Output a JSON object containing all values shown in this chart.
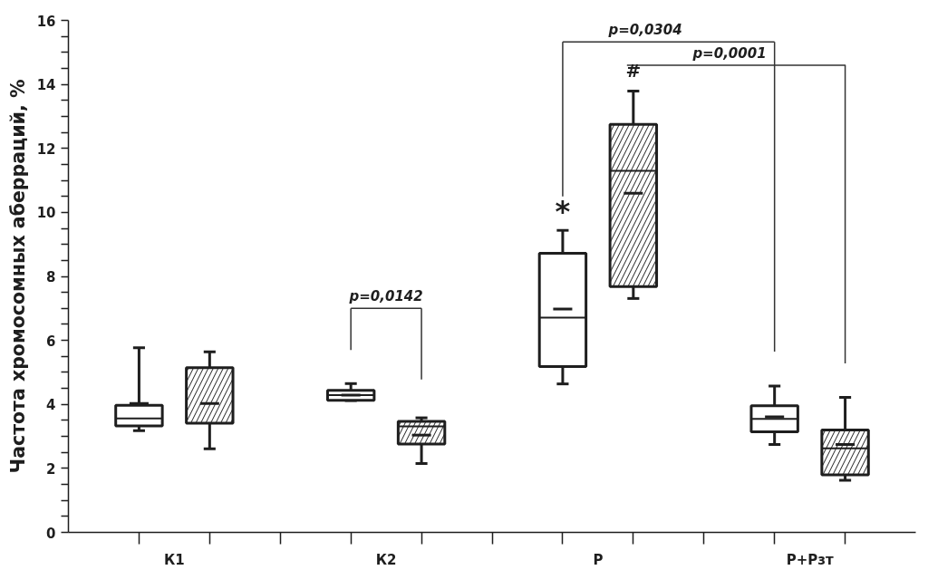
{
  "chart_data": {
    "type": "box",
    "ylabel": "Частота хромосомных аберраций, %",
    "categories": [
      "К1",
      "К2",
      "Р",
      "Р+Рзт"
    ],
    "ylim": [
      0,
      16
    ],
    "yticks": [
      0,
      {
        "value": 0.5,
        "label": null
      },
      {
        "value": 1,
        "label": null
      },
      {
        "value": 1.5,
        "label": null
      },
      2,
      {
        "value": 2.5,
        "label": null
      },
      {
        "value": 3,
        "label": null
      },
      {
        "value": 3.5,
        "label": null
      },
      4,
      {
        "value": 4.5,
        "label": null
      },
      {
        "value": 5,
        "label": null
      },
      {
        "value": 5.5,
        "label": null
      },
      6,
      {
        "value": 6.5,
        "label": null
      },
      {
        "value": 7,
        "label": null
      },
      {
        "value": 7.5,
        "label": null
      },
      8,
      {
        "value": 8.5,
        "label": null
      },
      {
        "value": 9,
        "label": null
      },
      {
        "value": 9.5,
        "label": null
      },
      10,
      {
        "value": 10.5,
        "label": null
      },
      {
        "value": 11,
        "label": null
      },
      {
        "value": 11.5,
        "label": null
      },
      12,
      {
        "value": 12.5,
        "label": null
      },
      {
        "value": 13,
        "label": null
      },
      {
        "value": 13.5,
        "label": null
      },
      14,
      {
        "value": 14.5,
        "label": null
      },
      {
        "value": 15,
        "label": null
      },
      {
        "value": 15.5,
        "label": null
      },
      16
    ],
    "series": [
      {
        "color": "#ffffff",
        "boxes": [
          {
            "low": 3.18,
            "q1": 3.33,
            "median": 3.56,
            "q3": 3.97,
            "high": 5.77,
            "mean": 4.03
          },
          {
            "low": 4.12,
            "q1": 4.13,
            "median": 4.29,
            "q3": 4.44,
            "high": 4.65,
            "mean": 4.29
          },
          {
            "low": 4.64,
            "q1": 5.18,
            "median": 6.71,
            "q3": 8.72,
            "high": 9.44,
            "mean": 6.98
          },
          {
            "low": 2.75,
            "q1": 3.14,
            "median": 3.55,
            "q3": 3.96,
            "high": 4.57,
            "mean": 3.61
          }
        ]
      },
      {
        "color": "#ffffff",
        "boxes": [
          {
            "low": 2.61,
            "q1": 3.41,
            "median": 3.41,
            "q3": 5.15,
            "high": 5.64,
            "mean": 4.03
          },
          {
            "low": 2.15,
            "q1": 2.76,
            "median": 3.31,
            "q3": 3.47,
            "high": 3.58,
            "mean": 3.04
          },
          {
            "low": 7.31,
            "q1": 7.68,
            "median": 11.3,
            "q3": 12.75,
            "high": 13.79,
            "mean": 10.6
          },
          {
            "low": 1.63,
            "q1": 1.8,
            "median": 2.63,
            "q3": 3.2,
            "high": 4.22,
            "mean": 2.75
          }
        ]
      }
    ],
    "annotations": [
      "p=0,0142",
      "p=0,0304",
      "p=0,0001",
      "*",
      "#"
    ]
  }
}
